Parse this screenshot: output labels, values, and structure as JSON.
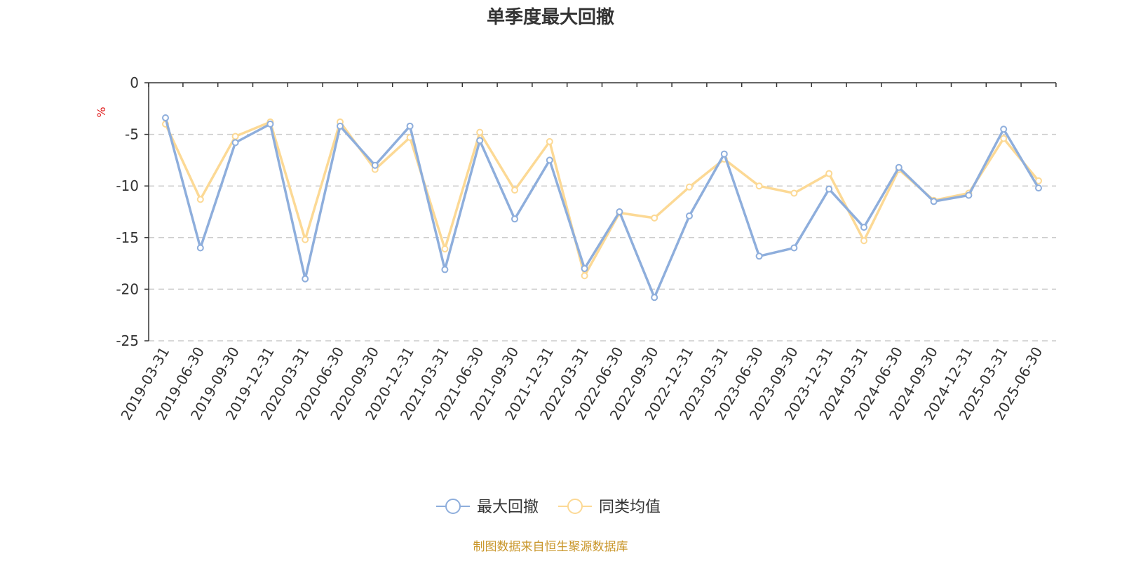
{
  "chart_data": {
    "type": "line",
    "title": "单季度最大回撤",
    "y_unit": "%",
    "ylim": [
      -25,
      0
    ],
    "y_ticks": [
      0,
      -5,
      -10,
      -15,
      -20,
      -25
    ],
    "grid": "horizontal dashed",
    "legend_position": "bottom-center",
    "categories": [
      "2019-03-31",
      "2019-06-30",
      "2019-09-30",
      "2019-12-31",
      "2020-03-31",
      "2020-06-30",
      "2020-09-30",
      "2020-12-31",
      "2021-03-31",
      "2021-06-30",
      "2021-09-30",
      "2021-12-31",
      "2022-03-31",
      "2022-06-30",
      "2022-09-30",
      "2022-12-31",
      "2023-03-31",
      "2023-06-30",
      "2023-09-30",
      "2023-12-31",
      "2024-03-31",
      "2024-06-30",
      "2024-09-30",
      "2024-12-31",
      "2025-03-31",
      "2025-06-30"
    ],
    "series": [
      {
        "name": "最大回撤",
        "color": "#8eaedc",
        "values": [
          -3.4,
          -16.0,
          -5.8,
          -4.0,
          -19.0,
          -4.2,
          -8.0,
          -4.2,
          -18.1,
          -5.6,
          -13.2,
          -7.5,
          -18.0,
          -12.5,
          -20.8,
          -12.9,
          -6.9,
          -16.8,
          -16.0,
          -10.3,
          -14.0,
          -8.2,
          -11.5,
          -10.9,
          -4.5,
          -10.2
        ]
      },
      {
        "name": "同类均值",
        "color": "#fcd995",
        "values": [
          -4.0,
          -11.3,
          -5.2,
          -3.8,
          -15.2,
          -3.8,
          -8.4,
          -5.3,
          -16.1,
          -4.8,
          -10.4,
          -5.7,
          -18.7,
          -12.6,
          -13.1,
          -10.1,
          -7.4,
          -10.0,
          -10.7,
          -8.8,
          -15.3,
          -8.4,
          -11.4,
          -10.7,
          -5.4,
          -9.5
        ]
      }
    ]
  },
  "source": {
    "text": "制图数据来自恒生聚源数据库",
    "color": "#c9962a"
  },
  "unit_color": "#e02020"
}
